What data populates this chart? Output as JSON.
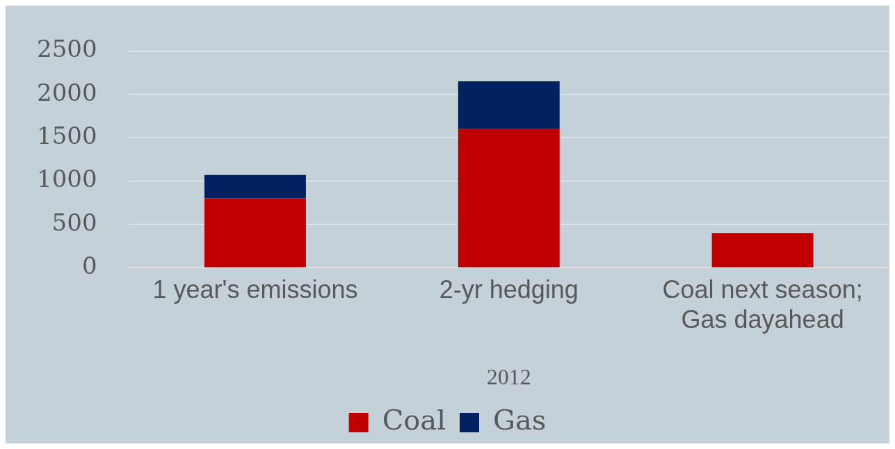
{
  "chart_data": {
    "type": "bar",
    "stacked": true,
    "xlabel": "2012",
    "categories": [
      "1 year's emissions",
      "2-yr hedging",
      "Coal next season; Gas dayahead"
    ],
    "series": [
      {
        "name": "Coal",
        "color": "#c00000",
        "values": [
          800,
          1600,
          400
        ]
      },
      {
        "name": "Gas",
        "color": "#002060",
        "values": [
          270,
          550,
          0
        ]
      }
    ],
    "ylim": [
      0,
      2500
    ],
    "yticks": [
      0,
      500,
      1000,
      1500,
      2000,
      2500
    ],
    "grid": "y",
    "legend": "bottom"
  }
}
